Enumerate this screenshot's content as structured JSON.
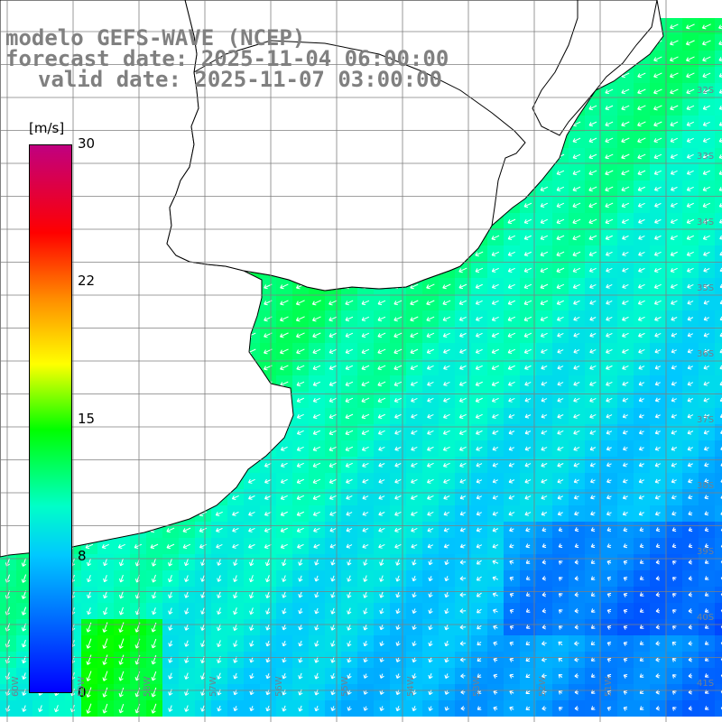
{
  "title": {
    "line1": "modelo GEFS-WAVE (NCEP)",
    "line2": "forecast date: 2025-11-04 06:00:00",
    "line3": "valid date: 2025-11-07 03:00:00"
  },
  "colorbar": {
    "unit": "[m/s]",
    "ticks": [
      "30",
      "22",
      "15",
      "8",
      "0"
    ],
    "tick_values": [
      30,
      22,
      15,
      8,
      0
    ],
    "range": [
      0,
      30
    ],
    "colors": [
      "#0000ff",
      "#00c8ff",
      "#00ffc8",
      "#00ff00",
      "#ffff00",
      "#ff8c00",
      "#ff0000",
      "#c00080"
    ]
  },
  "map": {
    "land_color": "#ffffff",
    "coast_color": "#000000",
    "grid_color": "#7f7f7f",
    "arrow_color": "#ffffff",
    "lat_labels": [
      "32S",
      "33S",
      "34S",
      "35S",
      "36S",
      "37S",
      "38S",
      "39S",
      "40S",
      "41S"
    ],
    "lon_labels": [
      "60W",
      "59W",
      "58W",
      "57W",
      "56W",
      "55W",
      "54W",
      "53W",
      "52W",
      "51W"
    ]
  }
}
